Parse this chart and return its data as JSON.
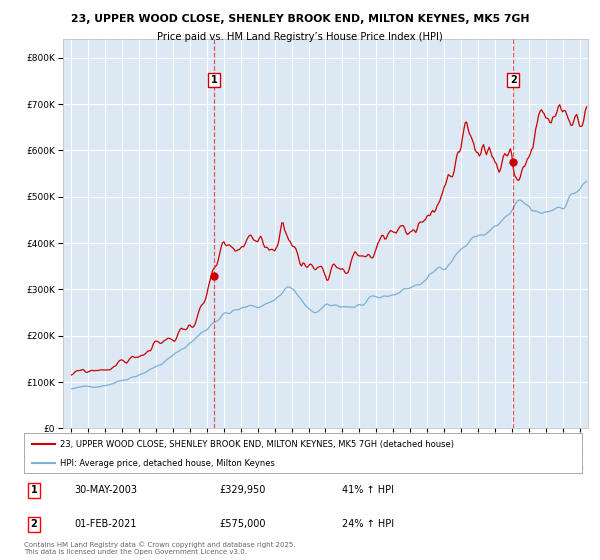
{
  "title_line1": "23, UPPER WOOD CLOSE, SHENLEY BROOK END, MILTON KEYNES, MK5 7GH",
  "title_line2": "Price paid vs. HM Land Registry’s House Price Index (HPI)",
  "bg_color": "#dce9f5",
  "fig_bg_color": "#ffffff",
  "red_line_color": "#cc0000",
  "blue_line_color": "#7ab0d4",
  "grid_color": "#ffffff",
  "annotation1": {
    "label": "1",
    "date_str": "30-MAY-2003",
    "price": 329950,
    "pct": "41%",
    "direction": "↑",
    "x_year": 2003.41
  },
  "annotation2": {
    "label": "2",
    "date_str": "01-FEB-2021",
    "price": 575000,
    "pct": "24%",
    "direction": "↑",
    "x_year": 2021.08
  },
  "legend_line1": "23, UPPER WOOD CLOSE, SHENLEY BROOK END, MILTON KEYNES, MK5 7GH (detached house)",
  "legend_line2": "HPI: Average price, detached house, Milton Keynes",
  "footer": "Contains HM Land Registry data © Crown copyright and database right 2025.\nThis data is licensed under the Open Government Licence v3.0.",
  "ylim": [
    0,
    840000
  ],
  "xlim": [
    1994.5,
    2025.5
  ],
  "yticks": [
    0,
    100000,
    200000,
    300000,
    400000,
    500000,
    600000,
    700000,
    800000
  ],
  "hpi_keypoints": [
    [
      1995.0,
      85000
    ],
    [
      1996.0,
      90000
    ],
    [
      1997.0,
      95000
    ],
    [
      1998.0,
      105000
    ],
    [
      1999.0,
      118000
    ],
    [
      2000.0,
      133000
    ],
    [
      2001.0,
      155000
    ],
    [
      2002.0,
      185000
    ],
    [
      2003.0,
      215000
    ],
    [
      2003.41,
      234000
    ],
    [
      2004.0,
      248000
    ],
    [
      2005.0,
      255000
    ],
    [
      2006.0,
      265000
    ],
    [
      2007.0,
      278000
    ],
    [
      2007.8,
      310000
    ],
    [
      2008.5,
      280000
    ],
    [
      2009.0,
      248000
    ],
    [
      2009.5,
      250000
    ],
    [
      2010.0,
      258000
    ],
    [
      2011.0,
      265000
    ],
    [
      2012.0,
      265000
    ],
    [
      2013.0,
      272000
    ],
    [
      2014.0,
      290000
    ],
    [
      2015.0,
      305000
    ],
    [
      2016.0,
      320000
    ],
    [
      2017.0,
      355000
    ],
    [
      2018.0,
      390000
    ],
    [
      2019.0,
      415000
    ],
    [
      2020.0,
      430000
    ],
    [
      2021.0,
      460000
    ],
    [
      2021.08,
      462000
    ],
    [
      2021.5,
      480000
    ],
    [
      2022.0,
      470000
    ],
    [
      2022.5,
      455000
    ],
    [
      2023.0,
      465000
    ],
    [
      2024.0,
      490000
    ],
    [
      2025.0,
      520000
    ],
    [
      2025.4,
      525000
    ]
  ],
  "prop_keypoints": [
    [
      1995.0,
      115000
    ],
    [
      1996.0,
      122000
    ],
    [
      1997.0,
      130000
    ],
    [
      1998.0,
      142000
    ],
    [
      1999.0,
      158000
    ],
    [
      2000.0,
      175000
    ],
    [
      2001.0,
      195000
    ],
    [
      2002.0,
      225000
    ],
    [
      2003.0,
      280000
    ],
    [
      2003.41,
      329950
    ],
    [
      2004.0,
      360000
    ],
    [
      2005.0,
      370000
    ],
    [
      2006.0,
      385000
    ],
    [
      2007.0,
      400000
    ],
    [
      2007.5,
      450000
    ],
    [
      2008.0,
      430000
    ],
    [
      2008.5,
      360000
    ],
    [
      2009.0,
      350000
    ],
    [
      2009.5,
      345000
    ],
    [
      2010.0,
      360000
    ],
    [
      2011.0,
      375000
    ],
    [
      2012.0,
      375000
    ],
    [
      2013.0,
      385000
    ],
    [
      2014.0,
      410000
    ],
    [
      2015.0,
      430000
    ],
    [
      2016.0,
      460000
    ],
    [
      2017.0,
      510000
    ],
    [
      2017.5,
      530000
    ],
    [
      2018.0,
      550000
    ],
    [
      2018.5,
      575000
    ],
    [
      2019.0,
      590000
    ],
    [
      2019.5,
      605000
    ],
    [
      2020.0,
      595000
    ],
    [
      2020.5,
      600000
    ],
    [
      2021.0,
      620000
    ],
    [
      2021.08,
      575000
    ],
    [
      2021.5,
      560000
    ],
    [
      2022.0,
      600000
    ],
    [
      2022.5,
      630000
    ],
    [
      2022.8,
      680000
    ],
    [
      2023.0,
      650000
    ],
    [
      2023.5,
      640000
    ],
    [
      2024.0,
      650000
    ],
    [
      2024.5,
      660000
    ],
    [
      2025.0,
      670000
    ],
    [
      2025.4,
      680000
    ]
  ]
}
